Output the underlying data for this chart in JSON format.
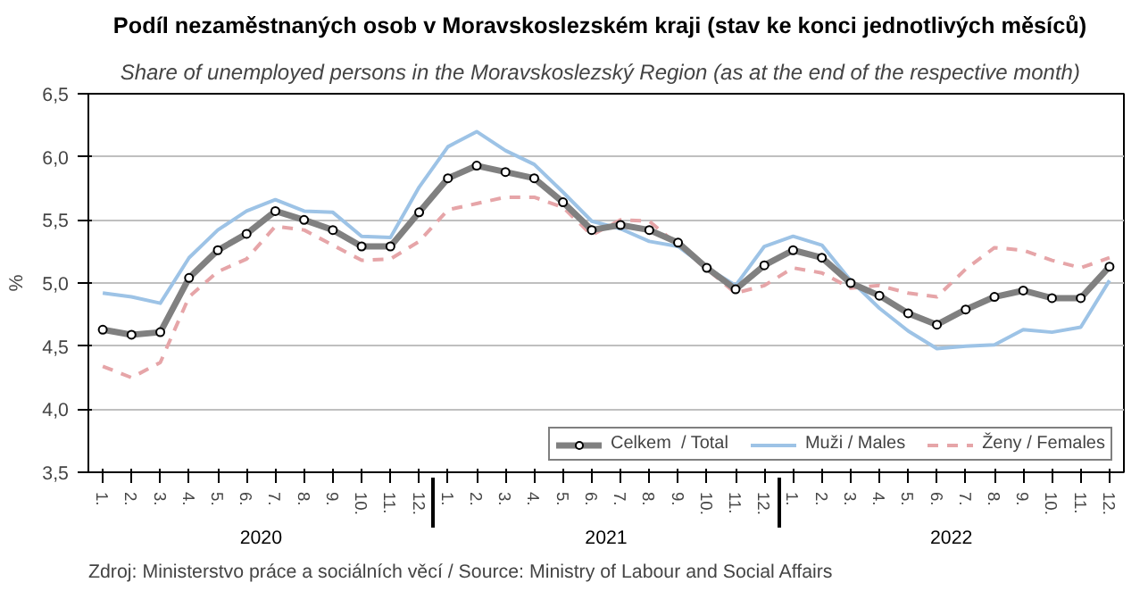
{
  "chart_data": {
    "type": "line",
    "title": "Podíl nezaměstnaných osob  v Moravskoslezském  kraji (stav ke konci jednotlivých měsíců)",
    "subtitle": "Share of unemployed persons  in the Moravskoslezský Region  (as at the end of the respective month)",
    "ylabel": "%",
    "categories": [
      "1.",
      "2.",
      "3.",
      "4.",
      "5.",
      "6.",
      "7.",
      "8.",
      "9.",
      "10.",
      "11.",
      "12.",
      "1.",
      "2.",
      "3.",
      "4.",
      "5.",
      "6.",
      "7.",
      "8.",
      "9.",
      "10.",
      "11.",
      "12.",
      "1.",
      "2.",
      "3.",
      "4.",
      "5.",
      "6.",
      "7.",
      "8.",
      "9.",
      "10.",
      "11.",
      "12."
    ],
    "annotations": [
      "2020",
      "2021",
      "2022",
      "Zdroj: Ministerstvo práce a sociálních věcí / Source: Ministry of Labour and Social Affairs"
    ],
    "series": [
      {
        "name": "Celkem  / Total",
        "color": "#808080",
        "marker": "circle",
        "line_style": "solid",
        "values": [
          4.63,
          4.59,
          4.61,
          5.04,
          5.26,
          5.39,
          5.57,
          5.5,
          5.42,
          5.29,
          5.29,
          5.56,
          5.83,
          5.93,
          5.88,
          5.83,
          5.64,
          5.42,
          5.46,
          5.42,
          5.32,
          5.12,
          4.95,
          5.14,
          5.26,
          5.2,
          5.0,
          4.9,
          4.76,
          4.67,
          4.79,
          4.89,
          4.94,
          4.88,
          4.88,
          5.13
        ]
      },
      {
        "name": "Muži / Males",
        "color": "#9dc3e6",
        "marker": "none",
        "line_style": "solid",
        "values": [
          4.92,
          4.89,
          4.84,
          5.2,
          5.42,
          5.57,
          5.66,
          5.57,
          5.56,
          5.37,
          5.36,
          5.76,
          6.08,
          6.2,
          6.05,
          5.94,
          5.72,
          5.49,
          5.43,
          5.33,
          5.29,
          5.12,
          4.98,
          5.29,
          5.37,
          5.3,
          5.02,
          4.8,
          4.62,
          4.48,
          4.5,
          4.51,
          4.63,
          4.61,
          4.65,
          5.02
        ]
      },
      {
        "name": "Ženy / Females",
        "color": "#e6a5a8",
        "marker": "none",
        "line_style": "dashed",
        "values": [
          4.34,
          4.25,
          4.37,
          4.89,
          5.09,
          5.19,
          5.45,
          5.42,
          5.3,
          5.18,
          5.19,
          5.33,
          5.58,
          5.63,
          5.68,
          5.68,
          5.6,
          5.38,
          5.5,
          5.49,
          5.3,
          5.11,
          4.92,
          4.98,
          5.12,
          5.08,
          4.96,
          4.98,
          4.92,
          4.89,
          5.11,
          5.28,
          5.26,
          5.18,
          5.12,
          5.2
        ]
      }
    ],
    "ylim": [
      3.5,
      6.5
    ],
    "yticks": [
      {
        "value": 3.5,
        "label": "3,5"
      },
      {
        "value": 4.0,
        "label": "4,0"
      },
      {
        "value": 4.5,
        "label": "4,5"
      },
      {
        "value": 5.0,
        "label": "5,0"
      },
      {
        "value": 5.5,
        "label": "5,5"
      },
      {
        "value": 6.0,
        "label": "6,0"
      },
      {
        "value": 6.5,
        "label": "6,5"
      }
    ],
    "grid": "y",
    "legend": "bottom right"
  }
}
